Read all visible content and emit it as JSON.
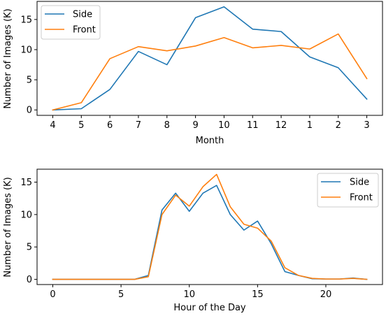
{
  "chart_data": [
    {
      "type": "line",
      "xlabel": "Month",
      "ylabel": "Number of Images (K)",
      "categories": [
        "4",
        "5",
        "6",
        "7",
        "8",
        "9",
        "10",
        "11",
        "12",
        "1",
        "2",
        "3"
      ],
      "ylim": [
        -0.9,
        18.0
      ],
      "yticks": [
        0,
        5,
        10,
        15
      ],
      "legend_position": "top-left",
      "grid": false,
      "series": [
        {
          "name": "Side",
          "color": "#1f77b4",
          "values": [
            0.0,
            0.2,
            3.4,
            9.7,
            7.5,
            15.3,
            17.1,
            13.4,
            13.0,
            8.8,
            7.0,
            1.8
          ]
        },
        {
          "name": "Front",
          "color": "#ff7f0e",
          "values": [
            0.0,
            1.2,
            8.5,
            10.5,
            9.8,
            10.6,
            12.0,
            10.3,
            10.7,
            10.1,
            12.6,
            5.2
          ]
        }
      ]
    },
    {
      "type": "line",
      "xlabel": "Hour of the Day",
      "ylabel": "Number of Images (K)",
      "x": [
        0,
        1,
        2,
        3,
        4,
        5,
        6,
        7,
        8,
        9,
        10,
        11,
        12,
        13,
        14,
        15,
        16,
        17,
        18,
        19,
        20,
        21,
        22,
        23
      ],
      "xlim": [
        -1.15,
        24.15
      ],
      "xticks": [
        0,
        5,
        10,
        15,
        20
      ],
      "ylim": [
        -0.8,
        17.0
      ],
      "yticks": [
        0,
        5,
        10,
        15
      ],
      "legend_position": "top-right",
      "grid": false,
      "series": [
        {
          "name": "Side",
          "color": "#1f77b4",
          "values": [
            0,
            0,
            0,
            0,
            0,
            0,
            0,
            0.6,
            10.7,
            13.3,
            10.5,
            13.3,
            14.5,
            10.0,
            7.6,
            9.0,
            5.5,
            1.2,
            0.6,
            0.1,
            0.05,
            0.05,
            0.2,
            0
          ]
        },
        {
          "name": "Front",
          "color": "#ff7f0e",
          "values": [
            0,
            0,
            0,
            0,
            0,
            0,
            0,
            0.4,
            10.0,
            13.0,
            11.3,
            14.3,
            16.2,
            11.2,
            8.5,
            7.9,
            5.9,
            1.8,
            0.6,
            0.15,
            0.05,
            0.05,
            0.15,
            0
          ]
        }
      ]
    }
  ]
}
